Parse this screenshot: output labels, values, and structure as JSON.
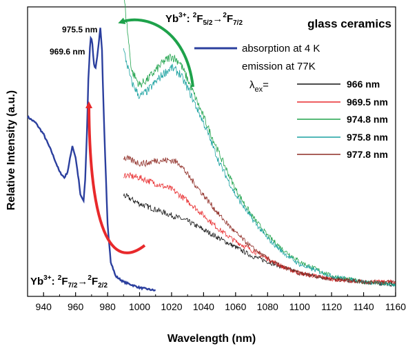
{
  "chart_data": {
    "type": "line",
    "title": "glass ceramics",
    "xlabel": "Wavelength (nm)",
    "ylabel": "Relative Intensity (a.u.)",
    "xlim": [
      930,
      1160
    ],
    "x_ticks": [
      940,
      960,
      980,
      1000,
      1020,
      1040,
      1060,
      1080,
      1100,
      1120,
      1140,
      1160
    ],
    "y_ticks": false,
    "grid": false,
    "legend_position": "top-right",
    "legend": {
      "absorption": "absorption at 4 K",
      "emission_heading": "emission at 77K",
      "lambda_symbol": "λ",
      "lambda_sub": "ex",
      "lambda_eq": "="
    },
    "series": [
      {
        "name": "absorption at 4 K",
        "color": "#2b3f9e",
        "x": [
          930,
          935,
          940,
          945,
          950,
          953,
          955,
          957,
          958,
          960,
          962,
          963,
          965,
          966,
          967,
          968,
          969,
          969.6,
          970.5,
          971.5,
          972.5,
          974,
          975.5,
          976.5,
          977.5,
          978.5,
          980,
          982,
          985,
          990,
          995,
          1000,
          1005,
          1010
        ],
        "values": [
          0.62,
          0.6,
          0.56,
          0.5,
          0.43,
          0.41,
          0.43,
          0.49,
          0.52,
          0.48,
          0.4,
          0.35,
          0.33,
          0.4,
          0.55,
          0.75,
          0.86,
          0.9,
          0.87,
          0.8,
          0.79,
          0.85,
          0.93,
          0.85,
          0.65,
          0.48,
          0.25,
          0.12,
          0.07,
          0.05,
          0.04,
          0.03,
          0.025,
          0.02
        ]
      },
      {
        "name": "966 nm",
        "color": "#111111",
        "x": [
          990,
          1000,
          1010,
          1020,
          1030,
          1040,
          1050,
          1060,
          1070,
          1080,
          1090,
          1100,
          1120,
          1140,
          1160
        ],
        "values": [
          0.35,
          0.32,
          0.3,
          0.28,
          0.26,
          0.23,
          0.2,
          0.17,
          0.14,
          0.12,
          0.1,
          0.08,
          0.06,
          0.05,
          0.04
        ]
      },
      {
        "name": "969.5 nm",
        "color": "#e8292b",
        "x": [
          990,
          1000,
          1010,
          1020,
          1030,
          1040,
          1050,
          1060,
          1070,
          1080,
          1090,
          1100,
          1120,
          1140,
          1160
        ],
        "values": [
          0.42,
          0.41,
          0.39,
          0.37,
          0.33,
          0.28,
          0.23,
          0.19,
          0.16,
          0.13,
          0.1,
          0.08,
          0.06,
          0.05,
          0.05
        ]
      },
      {
        "name": "974.8 nm",
        "color": "#1ea24b",
        "x": [
          990,
          995,
          1000,
          1005,
          1010,
          1015,
          1020,
          1025,
          1030,
          1040,
          1050,
          1060,
          1070,
          1080,
          1090,
          1100,
          1120,
          1140,
          1160
        ],
        "values": [
          1.05,
          0.78,
          0.73,
          0.75,
          0.78,
          0.81,
          0.83,
          0.81,
          0.75,
          0.62,
          0.49,
          0.37,
          0.28,
          0.21,
          0.16,
          0.12,
          0.07,
          0.05,
          0.04
        ]
      },
      {
        "name": "975.8 nm",
        "color": "#19a1a0",
        "x": [
          990,
          995,
          1000,
          1005,
          1010,
          1015,
          1020,
          1025,
          1030,
          1040,
          1050,
          1060,
          1070,
          1080,
          1090,
          1100,
          1120,
          1140,
          1160
        ],
        "values": [
          0.85,
          0.74,
          0.69,
          0.71,
          0.74,
          0.77,
          0.79,
          0.77,
          0.72,
          0.6,
          0.46,
          0.35,
          0.27,
          0.2,
          0.15,
          0.11,
          0.07,
          0.05,
          0.04
        ]
      },
      {
        "name": "977.8 nm",
        "color": "#8e2b24",
        "x": [
          990,
          995,
          1000,
          1005,
          1010,
          1015,
          1020,
          1025,
          1030,
          1040,
          1050,
          1060,
          1070,
          1080,
          1090,
          1100,
          1120,
          1140,
          1160
        ],
        "values": [
          0.48,
          0.47,
          0.46,
          0.46,
          0.47,
          0.47,
          0.47,
          0.46,
          0.42,
          0.35,
          0.28,
          0.22,
          0.17,
          0.13,
          0.1,
          0.08,
          0.06,
          0.05,
          0.05
        ]
      }
    ],
    "annotations": {
      "peak1": "969.6 nm",
      "peak2": "975.5 nm",
      "top_transition": {
        "ion": "Yb",
        "charge": "3+",
        "sep": ": ",
        "level1": "2",
        "term1": "F",
        "j1": "5/2",
        "arrow": "→",
        "level2": "2",
        "term2": "F",
        "j2": "7/2"
      },
      "bottom_transition": {
        "ion": "Yb",
        "charge": "3+",
        "sep": ": ",
        "level1": "2",
        "term1": "F",
        "j1": "7/2",
        "arrow": "→",
        "level2": "2",
        "term2": "F",
        "j2": "2/2"
      }
    },
    "arrow_colors": {
      "green": "#1ea24b",
      "red": "#e8292b"
    }
  }
}
